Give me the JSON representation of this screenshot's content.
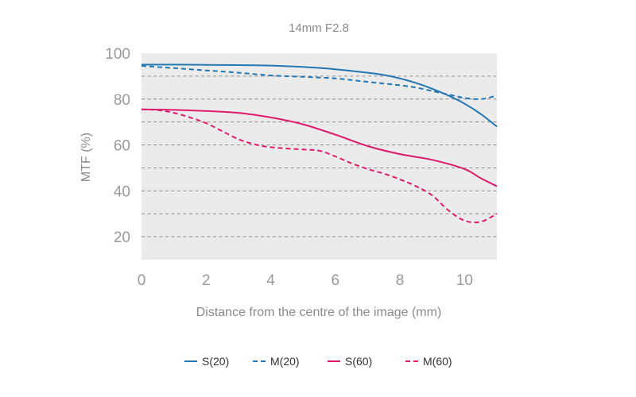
{
  "chart_data": {
    "type": "line",
    "title": "14mm F2.8",
    "xlabel": "Distance from the centre of the image (mm)",
    "ylabel": "MTF (%)",
    "xlim": [
      0,
      11
    ],
    "ylim": [
      10,
      100
    ],
    "xticks": [
      0,
      2,
      4,
      6,
      8,
      10
    ],
    "yticks": [
      20,
      40,
      60,
      80,
      100
    ],
    "gridlines_y": [
      20,
      30,
      40,
      50,
      60,
      70,
      80,
      90
    ],
    "grid": "dashed-horizontal",
    "plot_background": "#ebebeb",
    "legend_position": "bottom-center",
    "series": [
      {
        "name": "S(20)",
        "color": "#2277b3",
        "style": "solid",
        "x": [
          0,
          1,
          2,
          3,
          4,
          5,
          6,
          7,
          7.5,
          8,
          8.5,
          9,
          9.5,
          10,
          10.5,
          11
        ],
        "y": [
          95,
          95,
          94.9,
          94.8,
          94.6,
          94,
          93,
          91.5,
          90.5,
          89,
          87,
          84.5,
          81.5,
          78,
          73.5,
          68
        ]
      },
      {
        "name": "M(20)",
        "color": "#2277b3",
        "style": "dashed",
        "x": [
          0,
          1,
          2,
          3,
          4,
          5,
          6,
          7,
          8,
          8.5,
          9,
          9.5,
          10,
          10.5,
          11
        ],
        "y": [
          94.5,
          93.5,
          92.5,
          91.5,
          90.3,
          89.7,
          89,
          87.5,
          86,
          85,
          83.5,
          82,
          80.5,
          80,
          81.5
        ]
      },
      {
        "name": "S(60)",
        "color": "#de1a6a",
        "style": "solid",
        "x": [
          0,
          1,
          2,
          3,
          4,
          5,
          6,
          7,
          8,
          9,
          10,
          10.5,
          11
        ],
        "y": [
          75.5,
          75.3,
          74.8,
          74,
          72,
          69,
          64.5,
          59.5,
          56,
          53.5,
          49.5,
          45.5,
          42
        ]
      },
      {
        "name": "M(60)",
        "color": "#de1a6a",
        "style": "dashed",
        "x": [
          0,
          0.5,
          1,
          1.5,
          2,
          2.5,
          3,
          3.5,
          4,
          5,
          5.5,
          6,
          6.5,
          7,
          7.5,
          8,
          8.5,
          9,
          9.5,
          10,
          10.5,
          11
        ],
        "y": [
          75.5,
          75.2,
          74,
          72,
          69.5,
          66,
          62.5,
          60.3,
          59,
          58,
          57.5,
          55,
          52,
          49.5,
          47.5,
          45,
          42,
          38,
          31.5,
          27,
          26.5,
          30
        ]
      }
    ]
  }
}
